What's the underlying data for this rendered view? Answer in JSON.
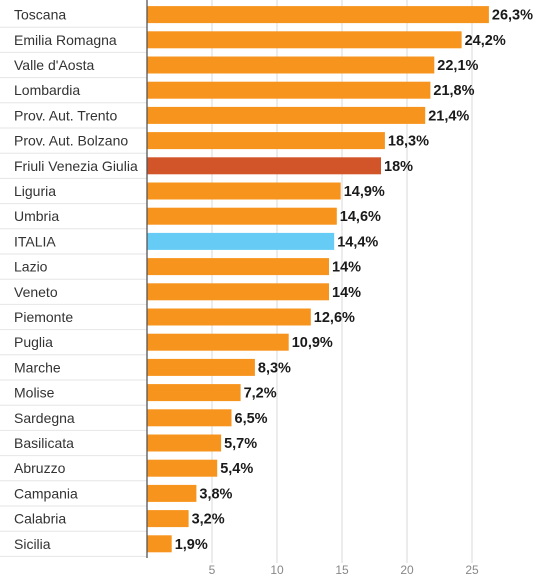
{
  "chart_data": {
    "type": "bar",
    "orientation": "horizontal",
    "title": "",
    "xlabel": "",
    "ylabel": "",
    "xlim": [
      0,
      29
    ],
    "xticks": [
      5,
      10,
      15,
      20,
      25
    ],
    "grid": true,
    "colors": {
      "default": "#F7941D",
      "highlight": "#D2552A",
      "national": "#66CCF5",
      "grid": "#d9d9d9",
      "row_separator": "#e6e6e6",
      "axis": "#555555"
    },
    "bars": [
      {
        "label": "Toscana",
        "value": 26.3,
        "display": "26,3%",
        "style": "default"
      },
      {
        "label": "Emilia Romagna",
        "value": 24.2,
        "display": "24,2%",
        "style": "default"
      },
      {
        "label": "Valle d'Aosta",
        "value": 22.1,
        "display": "22,1%",
        "style": "default"
      },
      {
        "label": "Lombardia",
        "value": 21.8,
        "display": "21,8%",
        "style": "default"
      },
      {
        "label": "Prov. Aut. Trento",
        "value": 21.4,
        "display": "21,4%",
        "style": "default"
      },
      {
        "label": "Prov. Aut. Bolzano",
        "value": 18.3,
        "display": "18,3%",
        "style": "default"
      },
      {
        "label": "Friuli Venezia Giulia",
        "value": 18.0,
        "display": "18%",
        "style": "highlight"
      },
      {
        "label": "Liguria",
        "value": 14.9,
        "display": "14,9%",
        "style": "default"
      },
      {
        "label": "Umbria",
        "value": 14.6,
        "display": "14,6%",
        "style": "default"
      },
      {
        "label": "ITALIA",
        "value": 14.4,
        "display": "14,4%",
        "style": "national"
      },
      {
        "label": "Lazio",
        "value": 14.0,
        "display": "14%",
        "style": "default"
      },
      {
        "label": "Veneto",
        "value": 14.0,
        "display": "14%",
        "style": "default"
      },
      {
        "label": "Piemonte",
        "value": 12.6,
        "display": "12,6%",
        "style": "default"
      },
      {
        "label": "Puglia",
        "value": 10.9,
        "display": "10,9%",
        "style": "default"
      },
      {
        "label": "Marche",
        "value": 8.3,
        "display": "8,3%",
        "style": "default"
      },
      {
        "label": "Molise",
        "value": 7.2,
        "display": "7,2%",
        "style": "default"
      },
      {
        "label": "Sardegna",
        "value": 6.5,
        "display": "6,5%",
        "style": "default"
      },
      {
        "label": "Basilicata",
        "value": 5.7,
        "display": "5,7%",
        "style": "default"
      },
      {
        "label": "Abruzzo",
        "value": 5.4,
        "display": "5,4%",
        "style": "default"
      },
      {
        "label": "Campania",
        "value": 3.8,
        "display": "3,8%",
        "style": "default"
      },
      {
        "label": "Calabria",
        "value": 3.2,
        "display": "3,2%",
        "style": "default"
      },
      {
        "label": "Sicilia",
        "value": 1.9,
        "display": "1,9%",
        "style": "default"
      }
    ]
  }
}
